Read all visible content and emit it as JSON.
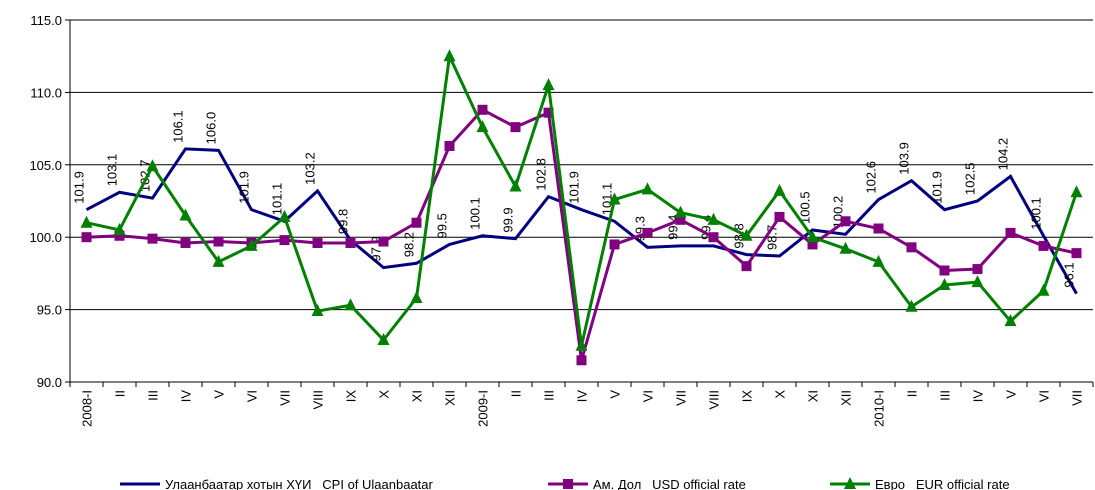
{
  "chart_data": {
    "type": "line",
    "categories": [
      "2008-I",
      "II",
      "III",
      "IV",
      "V",
      "VI",
      "VII",
      "VIII",
      "IX",
      "X",
      "XI",
      "XII",
      "2009-I",
      "II",
      "III",
      "IV",
      "V",
      "VI",
      "VII",
      "VIII",
      "IX",
      "X",
      "XI",
      "XII",
      "2010-I",
      "II",
      "III",
      "IV",
      "V",
      "VI",
      "VII"
    ],
    "ylim": [
      90,
      115
    ],
    "yticks": [
      {
        "value": 90,
        "label": "90.0"
      },
      {
        "value": 95,
        "label": "95.0"
      },
      {
        "value": 100,
        "label": "100.0"
      },
      {
        "value": 105,
        "label": "105.0"
      },
      {
        "value": 110,
        "label": "110.0"
      },
      {
        "value": 115,
        "label": "115.0"
      }
    ],
    "grid": true,
    "legend": "bottom",
    "series": [
      {
        "name": "Улаанбаатар хотын ХҮИ   CPI of Ulaanbaatar",
        "color": "#000080",
        "marker": "none",
        "values": [
          101.9,
          103.1,
          102.7,
          106.1,
          106.0,
          101.9,
          101.1,
          103.2,
          99.8,
          97.9,
          98.2,
          99.5,
          100.1,
          99.9,
          102.8,
          101.9,
          101.1,
          99.3,
          99.4,
          99.4,
          98.8,
          98.7,
          100.5,
          100.2,
          102.6,
          103.9,
          101.9,
          102.5,
          104.2,
          100.1,
          96.1
        ],
        "value_labels": [
          "101.9",
          "103.1",
          "102.7",
          "106.1",
          "106.0",
          "101.9",
          "101.1",
          "103.2",
          "99.8",
          "97.9",
          "98.2",
          "99.5",
          "100.1",
          "99.9",
          "102.8",
          "101.9",
          "101.1",
          "99.3",
          "99.4",
          "99.4",
          "98.8",
          "98.7",
          "100.5",
          "100.2",
          "102.6",
          "103.9",
          "101.9",
          "102.5",
          "104.2",
          "100.1",
          "96.1"
        ]
      },
      {
        "name": "Ам. Дол   USD official rate",
        "color": "#800080",
        "marker": "square",
        "values": [
          100.0,
          100.1,
          99.9,
          99.6,
          99.7,
          99.6,
          99.8,
          99.6,
          99.6,
          99.7,
          101.0,
          106.3,
          108.8,
          107.6,
          108.6,
          91.5,
          99.5,
          100.3,
          101.2,
          100.0,
          98.0,
          101.4,
          99.5,
          101.1,
          100.6,
          99.3,
          97.7,
          97.8,
          100.3,
          99.4,
          98.9
        ]
      },
      {
        "name": "Евро   EUR official rate",
        "color": "#008000",
        "marker": "triangle",
        "values": [
          101.0,
          100.5,
          104.9,
          101.5,
          98.3,
          99.4,
          101.4,
          94.9,
          95.3,
          92.9,
          95.8,
          112.5,
          107.6,
          103.5,
          110.5,
          92.5,
          102.6,
          103.3,
          101.7,
          101.2,
          100.1,
          103.2,
          100.0,
          99.2,
          98.3,
          95.2,
          96.7,
          96.9,
          94.2,
          96.3,
          103.1
        ]
      }
    ]
  }
}
